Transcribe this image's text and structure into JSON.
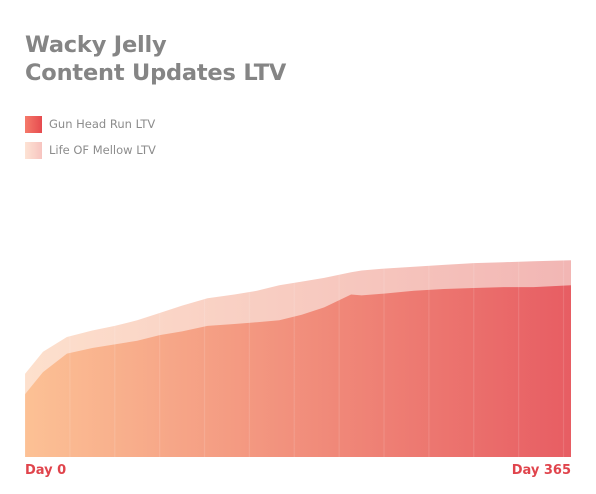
{
  "chart_data": {
    "type": "area",
    "title_lines": [
      "Wacky Jelly",
      "Content Updates LTV"
    ],
    "x_start_label": "Day 0",
    "x_end_label": "Day 365",
    "x": [
      0,
      12,
      28,
      45,
      60,
      75,
      90,
      105,
      122,
      140,
      155,
      170,
      185,
      200,
      218,
      225,
      240,
      260,
      280,
      300,
      320,
      340,
      365
    ],
    "xlim": [
      0,
      365
    ],
    "ylim": [
      0,
      300
    ],
    "grid_x": [
      0,
      30,
      60,
      90,
      120,
      150,
      180,
      210,
      240,
      270,
      300,
      330,
      360
    ],
    "series": [
      {
        "name": "Gun Head Run LTV",
        "color_start": "#fcc195",
        "color_end": "#e75d63",
        "values": [
          68,
          92,
          112,
          118,
          122,
          126,
          132,
          136,
          142,
          144,
          146,
          148,
          154,
          162,
          176,
          175,
          177,
          180,
          182,
          183,
          184,
          184,
          186
        ]
      },
      {
        "name": "Life OF Mellow LTV",
        "color_start": "#fde0cd",
        "color_end": "#f2b6b4",
        "values": [
          90,
          114,
          130,
          137,
          142,
          148,
          156,
          164,
          172,
          176,
          180,
          186,
          190,
          194,
          200,
          202,
          204,
          206,
          208,
          210,
          211,
          212,
          213
        ]
      }
    ]
  }
}
